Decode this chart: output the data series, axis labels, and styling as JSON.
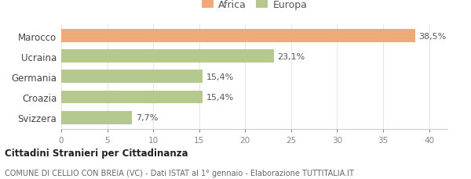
{
  "categories": [
    "Svizzera",
    "Croazia",
    "Germania",
    "Ucraina",
    "Marocco"
  ],
  "values": [
    7.7,
    15.4,
    15.4,
    23.1,
    38.5
  ],
  "labels": [
    "7,7%",
    "15,4%",
    "15,4%",
    "23,1%",
    "38,5%"
  ],
  "colors": [
    "#b5c98e",
    "#b5c98e",
    "#b5c98e",
    "#b5c98e",
    "#f0aa78"
  ],
  "legend": [
    {
      "label": "Africa",
      "color": "#f0aa78"
    },
    {
      "label": "Europa",
      "color": "#b5c98e"
    }
  ],
  "xlim": [
    0,
    42
  ],
  "xticks": [
    0,
    5,
    10,
    15,
    20,
    25,
    30,
    35,
    40
  ],
  "title_bold": "Cittadini Stranieri per Cittadinanza",
  "subtitle": "COMUNE DI CELLIO CON BREIA (VC) - Dati ISTAT al 1° gennaio - Elaborazione TUTTITALIA.IT",
  "bg_color": "#ffffff",
  "bar_height": 0.65
}
